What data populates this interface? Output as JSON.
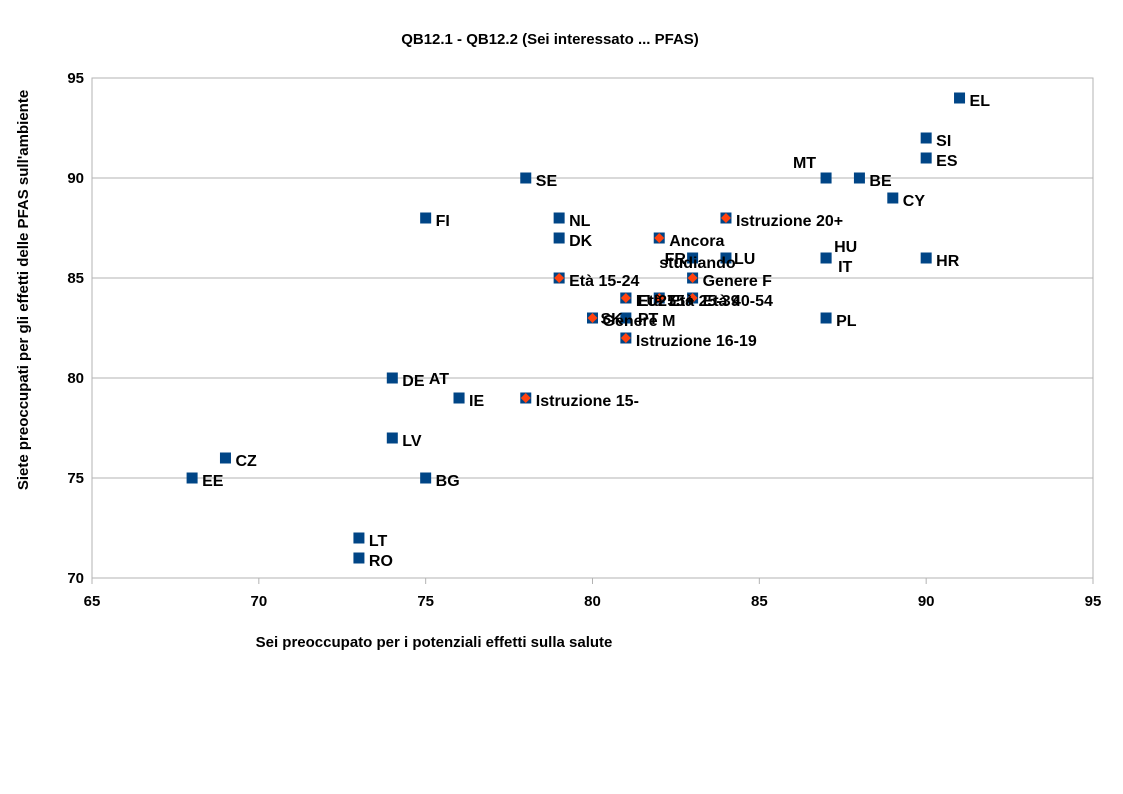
{
  "chart_data": {
    "type": "scatter",
    "title": "QB12.1 - QB12.2 (Sei interessato ... PFAS)",
    "xlabel": "Sei preoccupato per i potenziali effetti sulla salute",
    "ylabel": "Siete preoccupati per gli effetti delle PFAS sull'ambiente",
    "xlim": [
      65,
      95
    ],
    "ylim": [
      70,
      95
    ],
    "x_ticks": [
      "65",
      "70",
      "75",
      "80",
      "85",
      "90",
      "95"
    ],
    "y_ticks": [
      "70",
      "75",
      "80",
      "85",
      "90",
      "95"
    ],
    "grid": "horizontal",
    "legend": "none",
    "series": [
      {
        "color": "#004586",
        "marker": "square",
        "points": [
          {
            "label": "EL",
            "x": 91,
            "y": 94
          },
          {
            "label": "SI",
            "x": 90,
            "y": 92
          },
          {
            "label": "ES",
            "x": 90,
            "y": 91
          },
          {
            "label": "MT",
            "x": 87,
            "y": 90
          },
          {
            "label": "BE",
            "x": 88,
            "y": 90
          },
          {
            "label": "CY",
            "x": 89,
            "y": 89
          },
          {
            "label": "SE",
            "x": 78,
            "y": 90
          },
          {
            "label": "FI",
            "x": 75,
            "y": 88
          },
          {
            "label": "NL",
            "x": 79,
            "y": 88
          },
          {
            "label": "DK",
            "x": 79,
            "y": 87
          },
          {
            "label": "FR",
            "x": 83,
            "y": 86
          },
          {
            "label": "LU",
            "x": 84,
            "y": 86
          },
          {
            "label": "HU",
            "x": 87,
            "y": 86
          },
          {
            "label": "IT",
            "x": 87,
            "y": 86
          },
          {
            "label": "HR",
            "x": 90,
            "y": 86
          },
          {
            "label": "PL",
            "x": 87,
            "y": 83
          },
          {
            "label": "PT",
            "x": 81,
            "y": 83
          },
          {
            "label": "SK",
            "x": 80,
            "y": 83
          },
          {
            "label": "DE",
            "x": 74,
            "y": 80
          },
          {
            "label": "AT",
            "x": 76,
            "y": 79
          },
          {
            "label": "IE",
            "x": 76,
            "y": 79
          },
          {
            "label": "LV",
            "x": 74,
            "y": 77
          },
          {
            "label": "CZ",
            "x": 69,
            "y": 76
          },
          {
            "label": "EE",
            "x": 68,
            "y": 75
          },
          {
            "label": "BG",
            "x": 75,
            "y": 75
          },
          {
            "label": "LT",
            "x": 73,
            "y": 72
          },
          {
            "label": "RO",
            "x": 73,
            "y": 71
          }
        ]
      },
      {
        "color": "#ff420e",
        "marker": "diamond",
        "points": [
          {
            "label": "Istruzione 20+",
            "x": 84,
            "y": 88
          },
          {
            "label": "Ancora studiando",
            "x": 82,
            "y": 87
          },
          {
            "label": "Genere F",
            "x": 83,
            "y": 85
          },
          {
            "label": "Età 15-24",
            "x": 79,
            "y": 85
          },
          {
            "label": "EU27",
            "x": 81,
            "y": 84
          },
          {
            "label": "Età 25-39",
            "x": 82,
            "y": 84
          },
          {
            "label": "Età 40-54",
            "x": 83,
            "y": 84
          },
          {
            "label": "Età 55+",
            "x": 81,
            "y": 84
          },
          {
            "label": "Genere M",
            "x": 80,
            "y": 83
          },
          {
            "label": "Istruzione 16-19",
            "x": 81,
            "y": 82
          },
          {
            "label": "Istruzione 15-",
            "x": 78,
            "y": 79
          }
        ]
      }
    ]
  }
}
